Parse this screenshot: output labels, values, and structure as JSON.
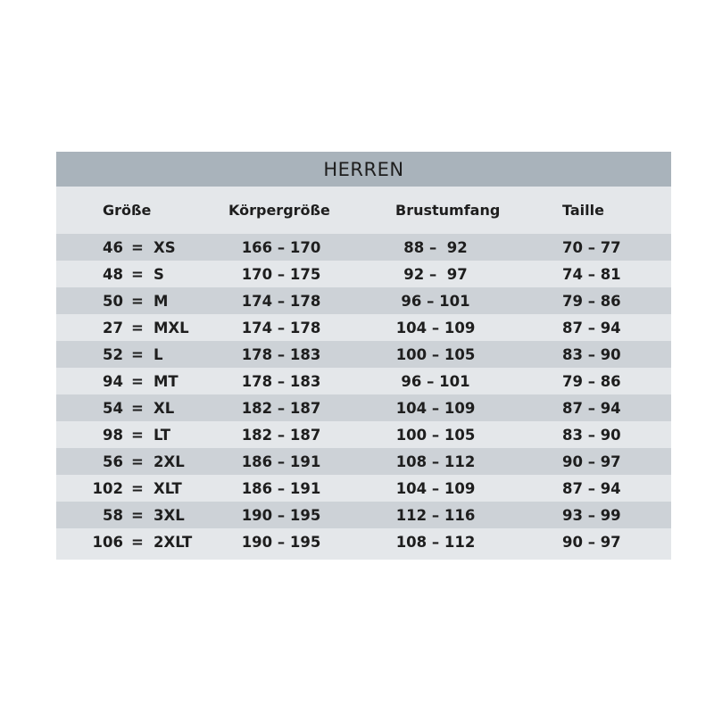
{
  "title": "HERREN",
  "headers": [
    "Größe",
    "Körpergröße",
    "Brustumfang",
    "Taille"
  ],
  "rows": [
    {
      "num": "46",
      "label": "XS",
      "k": "166 – 170",
      "b": "88 –  92",
      "t": "70 – 77"
    },
    {
      "num": "48",
      "label": "S",
      "k": "170 – 175",
      "b": "92 –  97",
      "t": "74 – 81"
    },
    {
      "num": "50",
      "label": "M",
      "k": "174 – 178",
      "b": "96 – 101",
      "t": "79 – 86"
    },
    {
      "num": "27",
      "label": "MXL",
      "k": "174 – 178",
      "b": "104 – 109",
      "t": "87 – 94"
    },
    {
      "num": "52",
      "label": "L",
      "k": "178 – 183",
      "b": "100 – 105",
      "t": "83 – 90"
    },
    {
      "num": "94",
      "label": "MT",
      "k": "178 – 183",
      "b": "96 – 101",
      "t": "79 – 86"
    },
    {
      "num": "54",
      "label": "XL",
      "k": "182 – 187",
      "b": "104 – 109",
      "t": "87 – 94"
    },
    {
      "num": "98",
      "label": "LT",
      "k": "182 – 187",
      "b": "100 – 105",
      "t": "83 – 90"
    },
    {
      "num": "56",
      "label": "2XL",
      "k": "186 – 191",
      "b": "108 – 112",
      "t": "90 – 97"
    },
    {
      "num": "102",
      "label": "XLT",
      "k": "186 – 191",
      "b": "104 – 109",
      "t": "87 – 94"
    },
    {
      "num": "58",
      "label": "3XL",
      "k": "190 – 195",
      "b": "112 – 116",
      "t": "93 – 99"
    },
    {
      "num": "106",
      "label": "2XLT",
      "k": "190 – 195",
      "b": "108 – 112",
      "t": "90 – 97"
    }
  ],
  "equals": "=",
  "colors": {
    "title_bg": "#a9b3bb",
    "row_dark": "#cdd2d7",
    "row_light": "#e4e7ea"
  }
}
